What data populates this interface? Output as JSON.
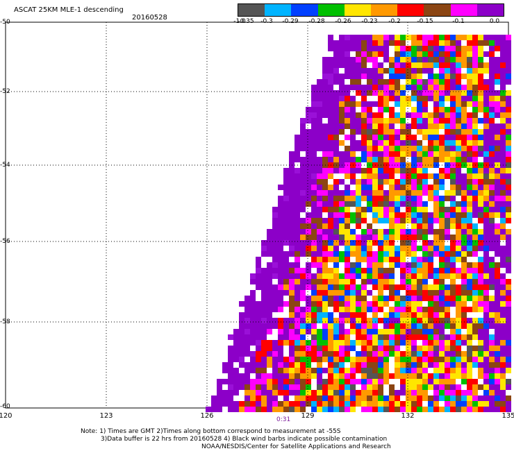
{
  "header": {
    "title": "ASCAT 25KM MLE-1 descending",
    "date": "20160528"
  },
  "colorbar": {
    "labels": [
      "-1.0",
      "-0.35",
      "-0.3",
      "-0.29",
      "-0.28",
      "-0.26",
      "-0.23",
      "-0.2",
      "-0.15",
      "-0.1",
      "0.0"
    ],
    "colors": [
      "#555555",
      "#00b4ff",
      "#0040ff",
      "#00c000",
      "#ffe600",
      "#ff9900",
      "#ff0000",
      "#8b4513",
      "#ff00ff",
      "#8c00c8"
    ]
  },
  "axes": {
    "lat_labels": [
      "-50",
      "-52",
      "-54",
      "-56",
      "-58",
      "-60"
    ],
    "lon_labels": [
      "120",
      "123",
      "126",
      "129",
      "132",
      "135"
    ]
  },
  "time_label": "0:31",
  "notes": {
    "line1": "Note: 1) Times are GMT 2)Times along bottom correspond to measurement at -55S",
    "line2": "3)Data buffer is 22 hrs from 20160528 4) Black wind barbs indicate possible contamination",
    "line3": "NOAA/NESDIS/Center for Satellite Applications and Research"
  }
}
